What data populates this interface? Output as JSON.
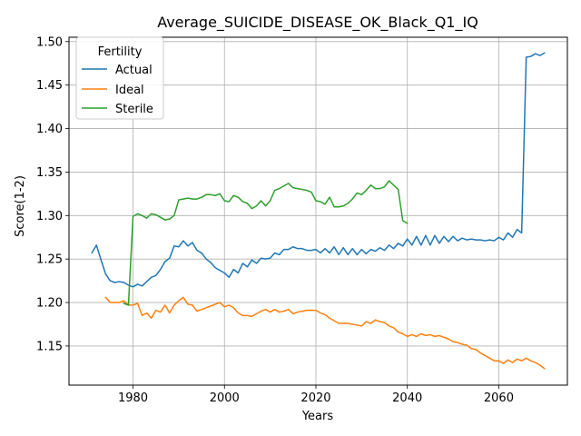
{
  "chart_data": {
    "type": "line",
    "title": "Average_SUICIDE_DISEASE_OK_Black_Q1_IQ",
    "xlabel": "Years",
    "ylabel": "Score(1-2)",
    "xlim": [
      1966,
      2075
    ],
    "ylim": [
      1.105,
      1.505
    ],
    "xticks": [
      1980,
      2000,
      2020,
      2040,
      2060
    ],
    "yticks": [
      1.15,
      1.2,
      1.25,
      1.3,
      1.35,
      1.4,
      1.45,
      1.5
    ],
    "ytick_labels": [
      "1.15",
      "1.20",
      "1.25",
      "1.30",
      "1.35",
      "1.40",
      "1.45",
      "1.50"
    ],
    "grid": true,
    "legend": {
      "title": "Fertility",
      "position": "top-left"
    },
    "series": [
      {
        "name": "Actual",
        "color": "#1f77b4",
        "x": [
          1971,
          1972,
          1973,
          1974,
          1975,
          1976,
          1977,
          1978,
          1979,
          1980,
          1981,
          1982,
          1983,
          1984,
          1985,
          1986,
          1987,
          1988,
          1989,
          1990,
          1991,
          1992,
          1993,
          1994,
          1995,
          1996,
          1997,
          1998,
          1999,
          2000,
          2001,
          2002,
          2003,
          2004,
          2005,
          2006,
          2007,
          2008,
          2009,
          2010,
          2011,
          2012,
          2013,
          2014,
          2015,
          2016,
          2017,
          2018,
          2019,
          2020,
          2021,
          2022,
          2023,
          2024,
          2025,
          2026,
          2027,
          2028,
          2029,
          2030,
          2031,
          2032,
          2033,
          2034,
          2035,
          2036,
          2037,
          2038,
          2039,
          2040,
          2041,
          2042,
          2043,
          2044,
          2045,
          2046,
          2047,
          2048,
          2049,
          2050,
          2051,
          2052,
          2053,
          2054,
          2055,
          2056,
          2057,
          2058,
          2059,
          2060,
          2061,
          2062,
          2063,
          2064,
          2065,
          2066,
          2067,
          2068,
          2069,
          2070
        ],
        "y": [
          1.257,
          1.266,
          1.249,
          1.233,
          1.225,
          1.223,
          1.224,
          1.223,
          1.22,
          1.218,
          1.221,
          1.219,
          1.224,
          1.229,
          1.231,
          1.238,
          1.247,
          1.251,
          1.265,
          1.264,
          1.271,
          1.265,
          1.269,
          1.26,
          1.257,
          1.25,
          1.246,
          1.24,
          1.237,
          1.234,
          1.229,
          1.238,
          1.234,
          1.245,
          1.241,
          1.249,
          1.245,
          1.251,
          1.25,
          1.251,
          1.257,
          1.255,
          1.261,
          1.261,
          1.264,
          1.262,
          1.262,
          1.26,
          1.26,
          1.261,
          1.257,
          1.262,
          1.257,
          1.264,
          1.255,
          1.263,
          1.255,
          1.262,
          1.255,
          1.261,
          1.256,
          1.261,
          1.259,
          1.263,
          1.26,
          1.266,
          1.262,
          1.268,
          1.265,
          1.273,
          1.266,
          1.276,
          1.266,
          1.277,
          1.266,
          1.277,
          1.268,
          1.276,
          1.27,
          1.276,
          1.271,
          1.274,
          1.272,
          1.273,
          1.272,
          1.272,
          1.271,
          1.272,
          1.271,
          1.275,
          1.272,
          1.28,
          1.275,
          1.284,
          1.28,
          1.482,
          1.483,
          1.486,
          1.484,
          1.487
        ]
      },
      {
        "name": "Ideal",
        "color": "#ff7f0e",
        "x": [
          1974,
          1975,
          1976,
          1977,
          1978,
          1979,
          1980,
          1981,
          1982,
          1983,
          1984,
          1985,
          1986,
          1987,
          1988,
          1989,
          1990,
          1991,
          1992,
          1993,
          1994,
          1995,
          1996,
          1997,
          1998,
          1999,
          2000,
          2001,
          2002,
          2003,
          2004,
          2005,
          2006,
          2007,
          2008,
          2009,
          2010,
          2011,
          2012,
          2013,
          2014,
          2015,
          2016,
          2017,
          2018,
          2019,
          2020,
          2021,
          2022,
          2023,
          2024,
          2025,
          2026,
          2027,
          2028,
          2029,
          2030,
          2031,
          2032,
          2033,
          2034,
          2035,
          2036,
          2037,
          2038,
          2039,
          2040,
          2041,
          2042,
          2043,
          2044,
          2045,
          2046,
          2047,
          2048,
          2049,
          2050,
          2051,
          2052,
          2053,
          2054,
          2055,
          2056,
          2057,
          2058,
          2059,
          2060,
          2061,
          2062,
          2063,
          2064,
          2065,
          2066,
          2067,
          2068,
          2069,
          2070
        ],
        "y": [
          1.206,
          1.2,
          1.2,
          1.2,
          1.202,
          1.197,
          1.197,
          1.199,
          1.185,
          1.188,
          1.182,
          1.191,
          1.189,
          1.197,
          1.188,
          1.197,
          1.202,
          1.206,
          1.198,
          1.197,
          1.19,
          1.192,
          1.194,
          1.196,
          1.198,
          1.2,
          1.195,
          1.197,
          1.194,
          1.188,
          1.185,
          1.185,
          1.184,
          1.187,
          1.19,
          1.192,
          1.189,
          1.192,
          1.189,
          1.19,
          1.192,
          1.187,
          1.189,
          1.19,
          1.191,
          1.191,
          1.191,
          1.188,
          1.186,
          1.182,
          1.179,
          1.176,
          1.176,
          1.176,
          1.175,
          1.174,
          1.173,
          1.178,
          1.176,
          1.18,
          1.178,
          1.177,
          1.173,
          1.171,
          1.166,
          1.164,
          1.161,
          1.163,
          1.161,
          1.164,
          1.162,
          1.163,
          1.161,
          1.162,
          1.16,
          1.158,
          1.155,
          1.154,
          1.152,
          1.151,
          1.147,
          1.146,
          1.142,
          1.139,
          1.136,
          1.133,
          1.133,
          1.13,
          1.134,
          1.131,
          1.135,
          1.133,
          1.136,
          1.133,
          1.131,
          1.128,
          1.124
        ]
      },
      {
        "name": "Sterile",
        "color": "#2ca02c",
        "x": [
          1978,
          1979,
          1980,
          1981,
          1982,
          1983,
          1984,
          1985,
          1986,
          1987,
          1988,
          1989,
          1990,
          1991,
          1992,
          1993,
          1994,
          1995,
          1996,
          1997,
          1998,
          1999,
          2000,
          2001,
          2002,
          2003,
          2004,
          2005,
          2006,
          2007,
          2008,
          2009,
          2010,
          2011,
          2012,
          2013,
          2014,
          2015,
          2016,
          2017,
          2018,
          2019,
          2020,
          2021,
          2022,
          2023,
          2024,
          2025,
          2026,
          2027,
          2028,
          2029,
          2030,
          2031,
          2032,
          2033,
          2034,
          2035,
          2036,
          2037,
          2038,
          2039,
          2040
        ],
        "y": [
          1.199,
          1.197,
          1.299,
          1.302,
          1.3,
          1.297,
          1.302,
          1.301,
          1.298,
          1.295,
          1.296,
          1.3,
          1.318,
          1.319,
          1.32,
          1.319,
          1.319,
          1.321,
          1.324,
          1.324,
          1.323,
          1.325,
          1.317,
          1.316,
          1.323,
          1.321,
          1.316,
          1.314,
          1.308,
          1.311,
          1.317,
          1.311,
          1.317,
          1.329,
          1.331,
          1.334,
          1.337,
          1.332,
          1.331,
          1.33,
          1.329,
          1.327,
          1.317,
          1.316,
          1.313,
          1.321,
          1.31,
          1.31,
          1.311,
          1.314,
          1.319,
          1.326,
          1.324,
          1.329,
          1.335,
          1.331,
          1.331,
          1.333,
          1.34,
          1.335,
          1.33,
          1.294,
          1.291
        ]
      }
    ]
  }
}
